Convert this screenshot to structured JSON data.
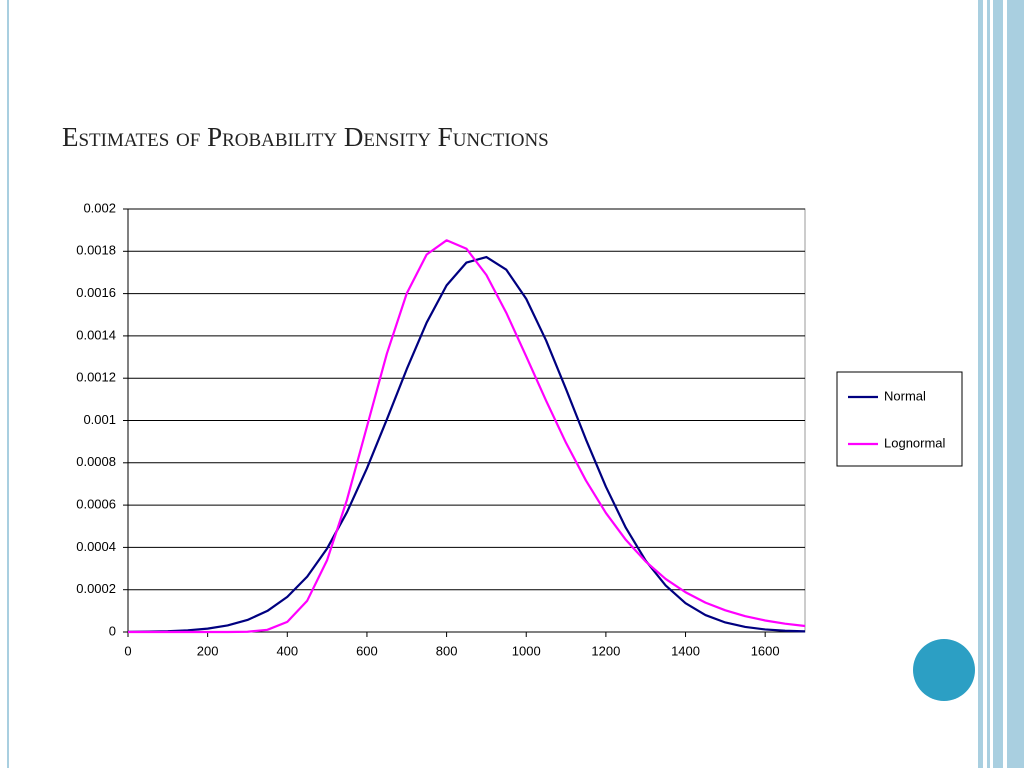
{
  "chart_data": {
    "type": "line",
    "title": "Estimates of Probability Density Functions",
    "x": [
      0,
      50,
      100,
      150,
      200,
      250,
      300,
      350,
      400,
      450,
      500,
      550,
      600,
      650,
      700,
      750,
      800,
      850,
      900,
      950,
      1000,
      1050,
      1100,
      1150,
      1200,
      1250,
      1300,
      1350,
      1400,
      1450,
      1500,
      1550,
      1600,
      1650,
      1700
    ],
    "series": [
      {
        "name": "Normal",
        "color": "#000080",
        "values": [
          1e-06,
          1.7e-06,
          3.7e-06,
          8e-06,
          1.6e-05,
          3.1e-05,
          5.7e-05,
          9.96e-05,
          0.000166,
          0.000262,
          0.000395,
          0.000567,
          0.000774,
          0.001005,
          0.001243,
          0.001463,
          0.001639,
          0.001747,
          0.001773,
          0.001713,
          0.001575,
          0.001378,
          0.001148,
          0.00091,
          0.000687,
          0.000493,
          0.000337,
          0.00022,
          0.000136,
          8e-05,
          4.5e-05,
          2.4e-05,
          1.2e-05,
          6e-06,
          3e-06
        ]
      },
      {
        "name": "Lognormal",
        "color": "#ff00ff",
        "values": [
          0,
          0,
          0,
          0,
          0,
          0,
          1.3e-06,
          1.04e-05,
          4.79e-05,
          0.000148,
          0.00034,
          0.000626,
          0.000971,
          0.001316,
          0.001601,
          0.001785,
          0.001852,
          0.001812,
          0.001688,
          0.001509,
          0.001303,
          0.001093,
          0.000894,
          0.000716,
          0.000563,
          0.000436,
          0.000333,
          0.000251,
          0.000188,
          0.000139,
          0.0001025,
          7.49e-05,
          5.44e-05,
          3.94e-05,
          2.84e-05
        ]
      }
    ],
    "xlim": [
      0,
      1700
    ],
    "xticks": [
      0,
      200,
      400,
      600,
      800,
      1000,
      1200,
      1400,
      1600
    ],
    "ylim": [
      0,
      0.002
    ],
    "yticks": [
      0,
      0.0002,
      0.0004,
      0.0006,
      0.0008,
      0.001,
      0.0012,
      0.0014,
      0.0016,
      0.0018,
      0.002
    ],
    "grid": true,
    "legend": "right"
  }
}
